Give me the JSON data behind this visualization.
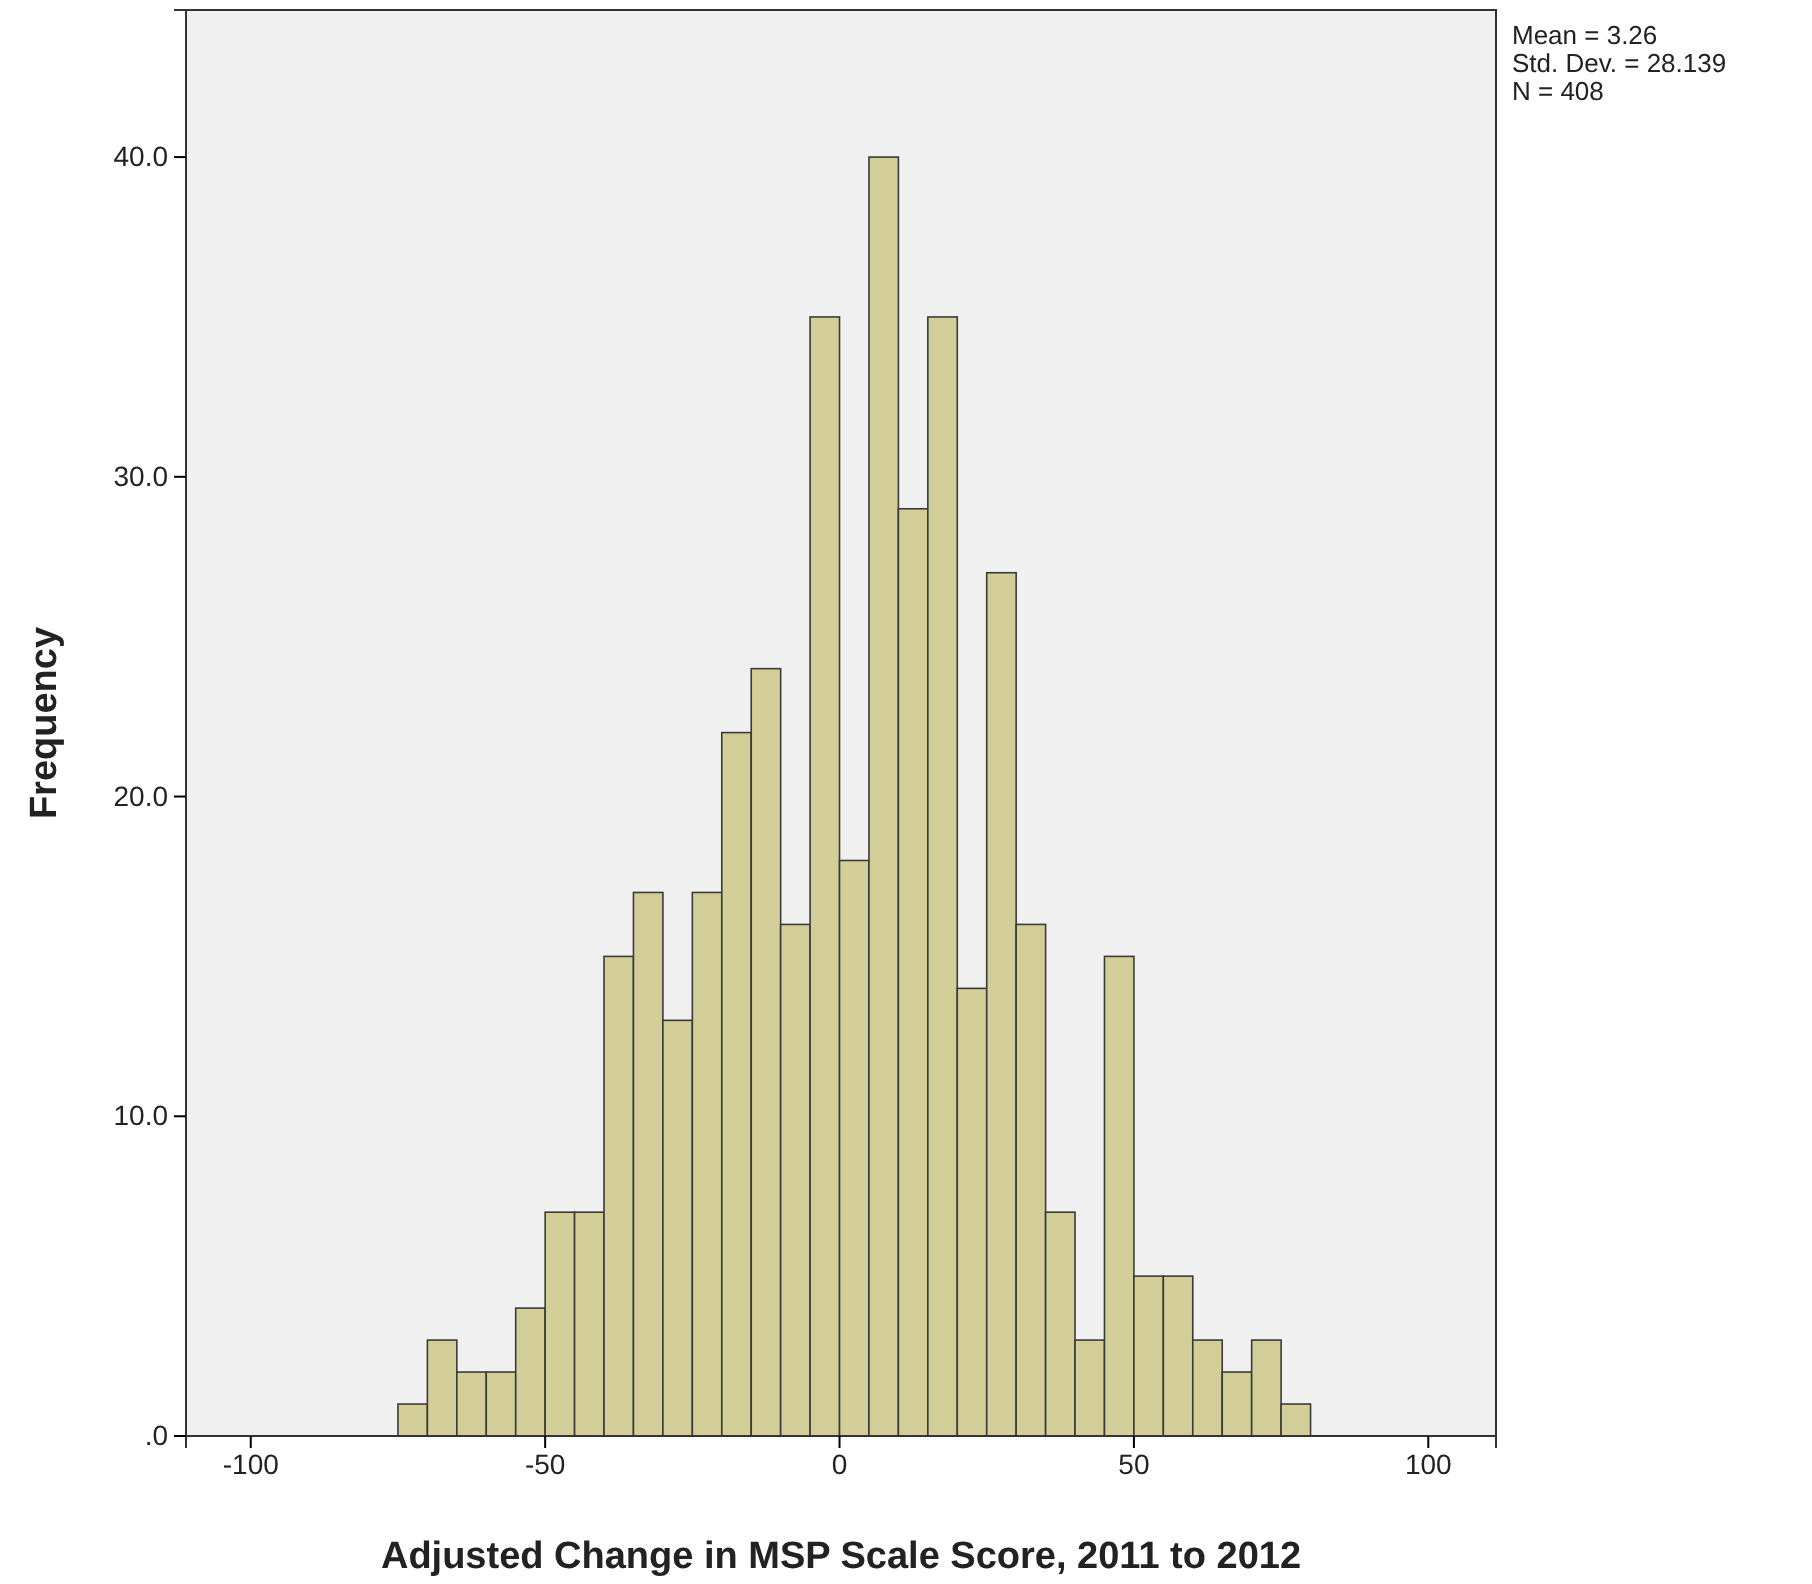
{
  "chart_data": {
    "type": "histogram",
    "xlabel": "Adjusted Change in MSP Scale Score, 2011 to 2012",
    "ylabel": "Frequency",
    "bins": [
      -75,
      -70,
      -65,
      -60,
      -55,
      -50,
      -45,
      -40,
      -35,
      -30,
      -25,
      -20,
      -15,
      -10,
      -5,
      0,
      5,
      10,
      15,
      20,
      25,
      30,
      35,
      40,
      45,
      50,
      55,
      60,
      65,
      70,
      75,
      80
    ],
    "values": [
      1,
      3,
      2,
      2,
      4,
      7,
      7,
      15,
      17,
      13,
      17,
      22,
      24,
      16,
      35,
      18,
      40,
      29,
      35,
      14,
      27,
      16,
      7,
      3,
      15,
      5,
      5,
      3,
      2,
      3,
      1
    ],
    "color": "#d3ce97",
    "xlim": [
      -111,
      111.5
    ],
    "xticks": [
      -100,
      -50,
      0,
      50,
      100
    ],
    "ylim": [
      0,
      44.6
    ],
    "yticks": [
      {
        "value": 0,
        "label": ".0"
      },
      {
        "value": 10,
        "label": "10.0"
      },
      {
        "value": 20,
        "label": "20.0"
      },
      {
        "value": 30,
        "label": "30.0"
      },
      {
        "value": 40,
        "label": "40.0"
      }
    ],
    "grid": false,
    "annotations": [
      "Mean = 3.26",
      "Std. Dev. = 28.139",
      "N = 408"
    ]
  }
}
